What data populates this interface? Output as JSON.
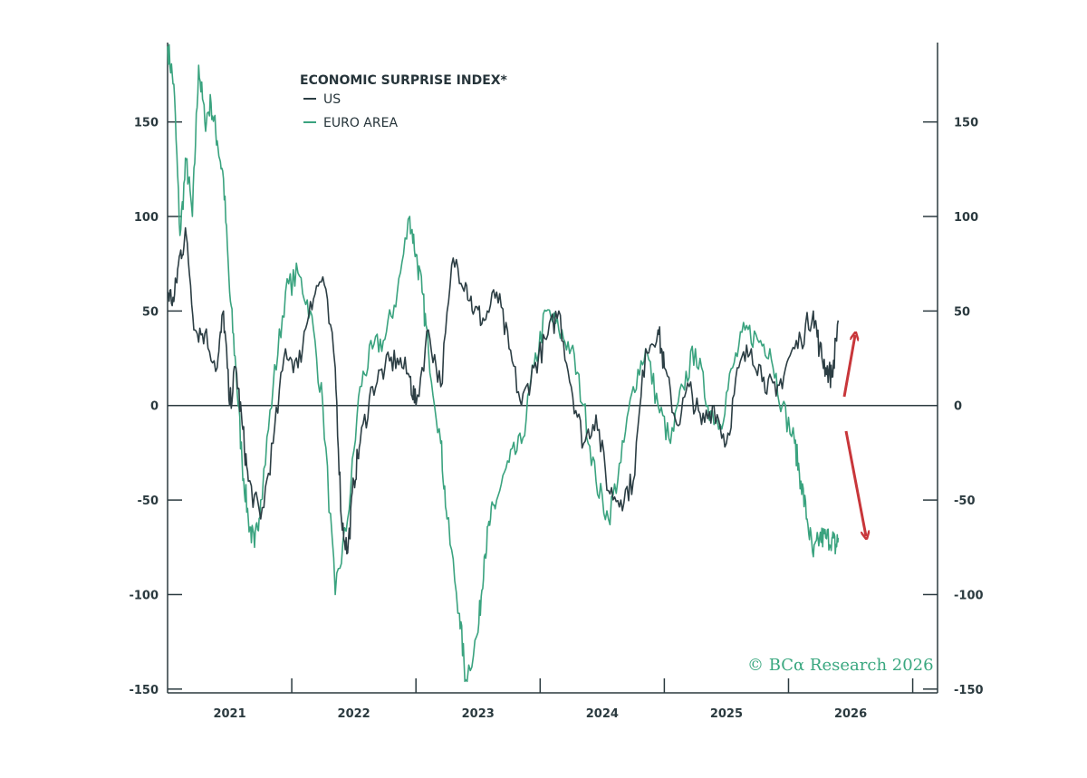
{
  "chart_data": {
    "type": "line",
    "title": "ECONOMIC SURPRISE INDEX*",
    "x_ticks": [
      "2021",
      "2022",
      "2023",
      "2024",
      "2025",
      "2026"
    ],
    "y_ticks": [
      150,
      100,
      50,
      0,
      -50,
      -100,
      -150
    ],
    "ylim": [
      -152,
      192
    ],
    "xlim": [
      2020.5,
      2026.7
    ],
    "legend_position": "top-left",
    "colors": {
      "US": "#2c3e44",
      "EURO AREA": "#3aa37f",
      "arrows": "#c8363a"
    },
    "series": [
      {
        "name": "US",
        "x": [
          2020.5,
          2020.55,
          2020.6,
          2020.65,
          2020.72,
          2020.8,
          2020.9,
          2020.95,
          2021.0,
          2021.05,
          2021.1,
          2021.15,
          2021.25,
          2021.35,
          2021.45,
          2021.55,
          2021.65,
          2021.75,
          2021.85,
          2021.9,
          2021.95,
          2022.0,
          2022.05,
          2022.15,
          2022.25,
          2022.35,
          2022.45,
          2022.5,
          2022.6,
          2022.7,
          2022.8,
          2022.9,
          2022.97,
          2023.05,
          2023.15,
          2023.25,
          2023.35,
          2023.45,
          2023.55,
          2023.65,
          2023.75,
          2023.85,
          2023.95,
          2024.05,
          2024.15,
          2024.25,
          2024.35,
          2024.45,
          2024.5,
          2024.6,
          2024.7,
          2024.8,
          2024.9,
          2025.0,
          2025.1,
          2025.2,
          2025.3,
          2025.4,
          2025.5,
          2025.6,
          2025.7,
          2025.75,
          2025.8,
          2025.85,
          2025.9
        ],
        "values": [
          60,
          55,
          80,
          90,
          40,
          38,
          20,
          50,
          0,
          20,
          -10,
          -40,
          -60,
          -20,
          30,
          20,
          55,
          68,
          20,
          -60,
          -78,
          -40,
          -20,
          10,
          20,
          25,
          15,
          0,
          40,
          10,
          78,
          65,
          50,
          45,
          60,
          30,
          0,
          20,
          35,
          50,
          10,
          -20,
          -5,
          -45,
          -50,
          -40,
          30,
          40,
          20,
          -10,
          10,
          -10,
          0,
          -20,
          20,
          30,
          15,
          5,
          25,
          35,
          50,
          30,
          20,
          15,
          45
        ]
      },
      {
        "name": "EURO AREA",
        "x": [
          2020.5,
          2020.55,
          2020.6,
          2020.65,
          2020.7,
          2020.75,
          2020.8,
          2020.85,
          2020.9,
          2020.95,
          2021.0,
          2021.05,
          2021.1,
          2021.15,
          2021.2,
          2021.25,
          2021.35,
          2021.45,
          2021.55,
          2021.65,
          2021.75,
          2021.85,
          2021.95,
          2022.05,
          2022.15,
          2022.25,
          2022.35,
          2022.45,
          2022.5,
          2022.55,
          2022.6,
          2022.7,
          2022.75,
          2022.85,
          2022.9,
          2023.0,
          2023.05,
          2023.1,
          2023.15,
          2023.25,
          2023.35,
          2023.45,
          2023.55,
          2023.65,
          2023.75,
          2023.85,
          2023.95,
          2024.05,
          2024.15,
          2024.25,
          2024.35,
          2024.45,
          2024.55,
          2024.65,
          2024.75,
          2024.85,
          2024.95,
          2025.05,
          2025.15,
          2025.25,
          2025.35,
          2025.45,
          2025.55,
          2025.6,
          2025.65,
          2025.7,
          2025.75,
          2025.8,
          2025.85,
          2025.88,
          2025.9
        ],
        "values": [
          190,
          170,
          90,
          130,
          100,
          180,
          150,
          160,
          140,
          120,
          60,
          20,
          -30,
          -60,
          -75,
          -50,
          10,
          60,
          70,
          50,
          0,
          -100,
          -60,
          10,
          30,
          35,
          60,
          100,
          80,
          60,
          30,
          -20,
          -60,
          -110,
          -145,
          -120,
          -80,
          -60,
          -50,
          -30,
          -20,
          20,
          50,
          40,
          30,
          0,
          -40,
          -60,
          -30,
          10,
          30,
          0,
          -20,
          10,
          30,
          0,
          -10,
          20,
          40,
          35,
          30,
          0,
          -20,
          -40,
          -60,
          -80,
          -70,
          -70,
          -70,
          -75,
          -70
        ]
      }
    ]
  },
  "legend": {
    "title": "ECONOMIC SURPRISE INDEX*",
    "items": [
      {
        "label": "US",
        "color": "#2c3e44"
      },
      {
        "label": "EURO AREA",
        "color": "#3aa37f"
      }
    ]
  },
  "copyright": "© BCα Research 2026"
}
